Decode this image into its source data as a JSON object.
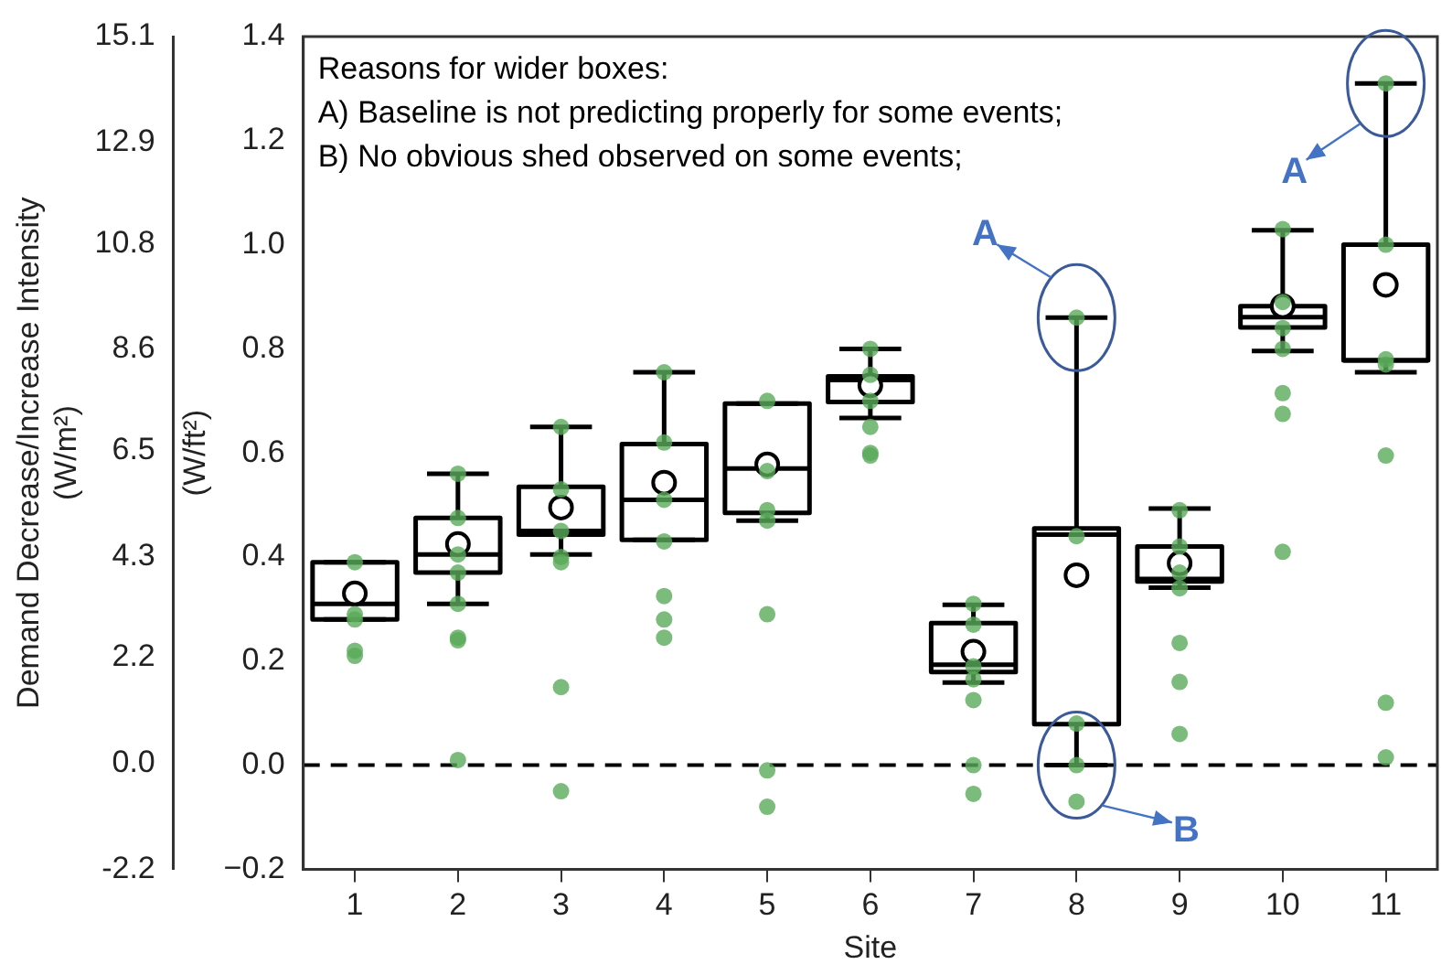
{
  "chart_data": {
    "type": "box",
    "xlabel": "Site",
    "ylabel": "(W/ft²)",
    "y2label": "Demand Decrease/Increase Intensity\n(W/m²)",
    "categories": [
      "1",
      "2",
      "3",
      "4",
      "5",
      "6",
      "7",
      "8",
      "9",
      "10",
      "11"
    ],
    "ylim": [
      -0.2,
      1.4
    ],
    "yticks": [
      {
        "value": -0.2,
        "label": "−0.2"
      },
      {
        "value": 0,
        "label": "0.0"
      },
      0.2,
      0.4,
      0.6,
      0.8,
      {
        "value": 1,
        "label": "1.0"
      },
      1.2,
      1.4
    ],
    "y2lim": [
      -2.2,
      15.1
    ],
    "y2ticks": [
      -2.2,
      {
        "value": 0,
        "label": "0.0"
      },
      2.2,
      4.3,
      6.5,
      8.6,
      10.8,
      12.9,
      15.1
    ],
    "ref_lines": [
      {
        "axis": "y",
        "value": 0,
        "color": "#000000",
        "line_style": "dashed"
      }
    ],
    "annotations": [
      "Reasons for wider boxes:",
      "A) Baseline is not predicting properly for some events;",
      "B) No obvious shed observed on some events;",
      {
        "text": "A",
        "x": "8",
        "y": 0.86
      },
      {
        "text": "A",
        "x": "11",
        "y": 1.31
      },
      {
        "text": "B",
        "x": "8",
        "y": 0.0
      }
    ],
    "series": [
      {
        "type": "box",
        "color": "#000000",
        "boxes": [
          {
            "low": 0.28,
            "q1": 0.28,
            "median": 0.31,
            "q3": 0.39,
            "high": 0.39,
            "mean": 0.33
          },
          {
            "low": 0.31,
            "q1": 0.37,
            "median": 0.405,
            "q3": 0.475,
            "high": 0.56,
            "mean": 0.425
          },
          {
            "low": 0.405,
            "q1": 0.443,
            "median": 0.45,
            "q3": 0.535,
            "high": 0.65,
            "mean": 0.495
          },
          {
            "low": 0.433,
            "q1": 0.433,
            "median": 0.51,
            "q3": 0.617,
            "high": 0.755,
            "mean": 0.543
          },
          {
            "low": 0.47,
            "q1": 0.485,
            "median": 0.57,
            "q3": 0.695,
            "high": 0.695,
            "mean": 0.578
          },
          {
            "low": 0.667,
            "q1": 0.698,
            "median": 0.74,
            "q3": 0.747,
            "high": 0.8,
            "mean": 0.73
          },
          {
            "low": 0.159,
            "q1": 0.179,
            "median": 0.193,
            "q3": 0.273,
            "high": 0.308,
            "mean": 0.218
          },
          {
            "low": 0.0,
            "q1": 0.079,
            "median": 0.443,
            "q3": 0.455,
            "high": 0.86,
            "mean": 0.365
          },
          {
            "low": 0.341,
            "q1": 0.353,
            "median": 0.358,
            "q3": 0.42,
            "high": 0.493,
            "mean": 0.388
          },
          {
            "low": 0.796,
            "q1": 0.841,
            "median": 0.861,
            "q3": 0.882,
            "high": 1.028,
            "mean": 0.882
          },
          {
            "low": 0.755,
            "q1": 0.778,
            "median": 0.778,
            "q3": 1.0,
            "high": 1.31,
            "mean": 0.923
          }
        ]
      },
      {
        "type": "scatter",
        "color": "#5aaa5a",
        "x": [
          "1",
          "1",
          "1",
          "1",
          "1",
          "2",
          "2",
          "2",
          "2",
          "2",
          "2",
          "2",
          "2",
          "3",
          "3",
          "3",
          "3",
          "3",
          "3",
          "3",
          "4",
          "4",
          "4",
          "4",
          "4",
          "4",
          "4",
          "5",
          "5",
          "5",
          "5",
          "5",
          "5",
          "5",
          "6",
          "6",
          "6",
          "6",
          "6",
          "6",
          "7",
          "7",
          "7",
          "7",
          "7",
          "7",
          "7",
          "8",
          "8",
          "8",
          "8",
          "8",
          "9",
          "9",
          "9",
          "9",
          "9",
          "9",
          "9",
          "10",
          "10",
          "10",
          "10",
          "10",
          "10",
          "10",
          "11",
          "11",
          "11",
          "11",
          "11",
          "11",
          "11"
        ],
        "values": [
          0.39,
          0.29,
          0.28,
          0.22,
          0.21,
          0.56,
          0.475,
          0.405,
          0.37,
          0.31,
          0.245,
          0.24,
          0.01,
          0.65,
          0.53,
          0.45,
          0.4,
          0.39,
          0.15,
          -0.05,
          0.755,
          0.62,
          0.51,
          0.43,
          0.325,
          0.28,
          0.245,
          0.7,
          0.565,
          0.49,
          0.47,
          0.29,
          -0.01,
          -0.08,
          0.8,
          0.75,
          0.7,
          0.65,
          0.6,
          0.595,
          0.31,
          0.27,
          0.19,
          0.165,
          0.125,
          0.0,
          -0.055,
          0.86,
          0.44,
          0.08,
          0.0,
          -0.07,
          0.49,
          0.42,
          0.37,
          0.34,
          0.235,
          0.16,
          0.06,
          1.03,
          0.89,
          0.84,
          0.8,
          0.715,
          0.675,
          0.41,
          1.31,
          1.0,
          0.78,
          0.77,
          0.595,
          0.12,
          0.015
        ]
      }
    ]
  }
}
